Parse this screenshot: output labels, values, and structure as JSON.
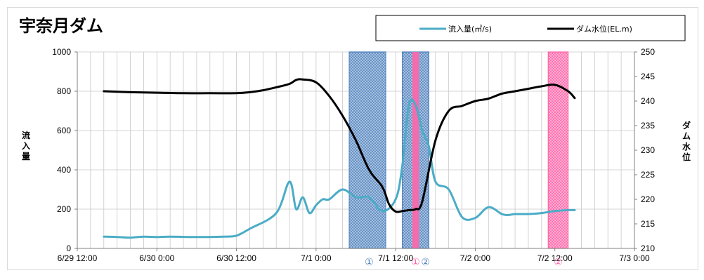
{
  "chart_data": {
    "type": "line",
    "title": "宇奈月ダム",
    "x_ticks": [
      "6/29 12:00",
      "6/30 0:00",
      "6/30 12:00",
      "7/1 0:00",
      "7/1 12:00",
      "7/2 0:00",
      "7/2 12:00",
      "7/3 0:00"
    ],
    "y_left": {
      "label": "流入量",
      "ylim": [
        0,
        1000
      ],
      "ticks": [
        "0",
        "200",
        "400",
        "600",
        "800",
        "1000"
      ]
    },
    "y_right": {
      "label": "ダム水位",
      "ylim": [
        210,
        250
      ],
      "ticks": [
        "210",
        "215",
        "220",
        "225",
        "230",
        "235",
        "240",
        "245",
        "250"
      ]
    },
    "grid": true,
    "legend": {
      "position": "top-right"
    },
    "series": [
      {
        "name": "流入量(㎥/s)",
        "axis": "left",
        "color": "#4bacc6",
        "x": [
          "6/29 16:00",
          "6/29 18:00",
          "6/29 20:00",
          "6/29 22:00",
          "6/30 0:00",
          "6/30 2:00",
          "6/30 6:00",
          "6/30 10:00",
          "6/30 12:00",
          "6/30 14:00",
          "6/30 18:00",
          "6/30 20:00",
          "6/30 21:00",
          "6/30 22:00",
          "6/30 23:00",
          "7/1 0:00",
          "7/1 1:00",
          "7/1 2:00",
          "7/1 4:00",
          "7/1 6:00",
          "7/1 8:00",
          "7/1 10:00",
          "7/1 12:00",
          "7/1 13:00",
          "7/1 14:00",
          "7/1 15:00",
          "7/1 16:00",
          "7/1 17:00",
          "7/1 18:00",
          "7/1 20:00",
          "7/1 22:00",
          "7/2 0:00",
          "7/2 2:00",
          "7/2 4:00",
          "7/2 5:00",
          "7/2 6:00",
          "7/2 8:00",
          "7/2 10:00",
          "7/2 12:00",
          "7/2 14:00",
          "7/2 15:00"
        ],
        "values": [
          60,
          58,
          55,
          60,
          58,
          60,
          58,
          60,
          65,
          100,
          180,
          340,
          200,
          260,
          180,
          220,
          250,
          250,
          300,
          260,
          260,
          190,
          250,
          420,
          730,
          730,
          600,
          520,
          340,
          300,
          160,
          155,
          210,
          175,
          170,
          175,
          175,
          180,
          190,
          195,
          195
        ]
      },
      {
        "name": "ダム水位(EL.m)",
        "axis": "right",
        "color": "#000000",
        "x": [
          "6/29 16:00",
          "6/29 20:00",
          "6/30 0:00",
          "6/30 4:00",
          "6/30 8:00",
          "6/30 12:00",
          "6/30 14:00",
          "6/30 16:00",
          "6/30 18:00",
          "6/30 20:00",
          "6/30 21:00",
          "6/30 22:00",
          "7/1 0:00",
          "7/1 2:00",
          "7/1 4:00",
          "7/1 6:00",
          "7/1 8:00",
          "7/1 10:00",
          "7/1 11:00",
          "7/1 12:00",
          "7/1 13:00",
          "7/1 14:00",
          "7/1 15:00",
          "7/1 16:00",
          "7/1 18:00",
          "7/1 20:00",
          "7/1 22:00",
          "7/2 0:00",
          "7/2 2:00",
          "7/2 4:00",
          "7/2 6:00",
          "7/2 8:00",
          "7/2 10:00",
          "7/2 12:00",
          "7/2 14:00",
          "7/2 15:00"
        ],
        "values": [
          242,
          241.8,
          241.7,
          241.6,
          241.6,
          241.6,
          241.8,
          242.2,
          242.8,
          243.5,
          244.3,
          244.4,
          243.8,
          241.0,
          237.0,
          232.0,
          226.0,
          222.5,
          219.0,
          217.5,
          217.6,
          217.8,
          218.0,
          219.5,
          232.0,
          238.0,
          239.0,
          240.0,
          240.5,
          241.5,
          242.0,
          242.5,
          243.0,
          243.3,
          242.0,
          240.6
        ]
      }
    ],
    "shaded_periods": [
      {
        "start": "7/1 5:00",
        "end": "7/1 10:30",
        "color": "#4f81bd",
        "pattern": "dots"
      },
      {
        "start": "7/1 13:00",
        "end": "7/1 17:00",
        "color": "#4f81bd",
        "pattern": "dots"
      },
      {
        "start": "7/1 14:30",
        "end": "7/1 15:30",
        "color": "#ff66aa",
        "pattern": "solid"
      },
      {
        "start": "7/2 11:00",
        "end": "7/2 14:00",
        "color": "#ff66aa",
        "pattern": "dots"
      }
    ],
    "period_markers": [
      {
        "text": "①",
        "color": "#4f81bd",
        "at": "7/1 8:00"
      },
      {
        "text": "①",
        "color": "#ff66aa",
        "at": "7/1 15:00"
      },
      {
        "text": "②",
        "color": "#4f81bd",
        "at": "7/1 16:30"
      },
      {
        "text": "②",
        "color": "#ff66aa",
        "at": "7/2 12:30"
      }
    ]
  }
}
